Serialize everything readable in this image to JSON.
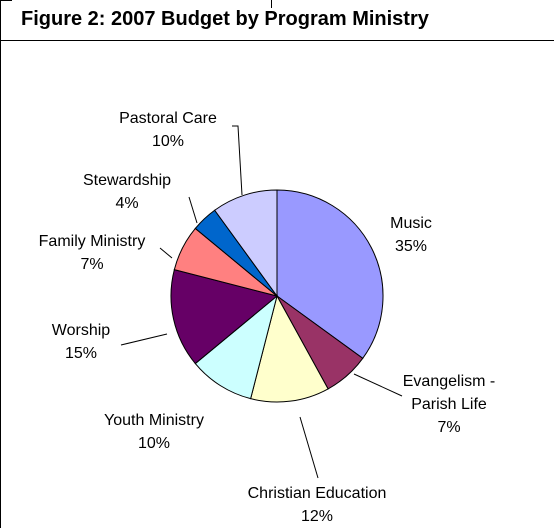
{
  "title": "Figure 2: 2007 Budget by Program Ministry",
  "chart_data": {
    "type": "pie",
    "title": "Figure 2: 2007 Budget by Program Ministry",
    "slices": [
      {
        "label": "Music",
        "value": 35,
        "value_label": "35%",
        "color": "#9999ff"
      },
      {
        "label": "Evangelism - Parish Life",
        "label_lines": [
          "Evangelism -",
          "Parish Life"
        ],
        "value": 7,
        "value_label": "7%",
        "color": "#993366"
      },
      {
        "label": "Christian Education",
        "value": 12,
        "value_label": "12%",
        "color": "#ffffcc"
      },
      {
        "label": "Youth Ministry",
        "value": 10,
        "value_label": "10%",
        "color": "#ccffff"
      },
      {
        "label": "Worship",
        "value": 15,
        "value_label": "15%",
        "color": "#660066"
      },
      {
        "label": "Family Ministry",
        "value": 7,
        "value_label": "7%",
        "color": "#ff8080"
      },
      {
        "label": "Stewardship",
        "value": 4,
        "value_label": "4%",
        "color": "#0066cc"
      },
      {
        "label": "Pastoral Care",
        "value": 10,
        "value_label": "10%",
        "color": "#ccccff"
      }
    ],
    "start": "12 o'clock",
    "direction": "clockwise",
    "legend": "none"
  }
}
